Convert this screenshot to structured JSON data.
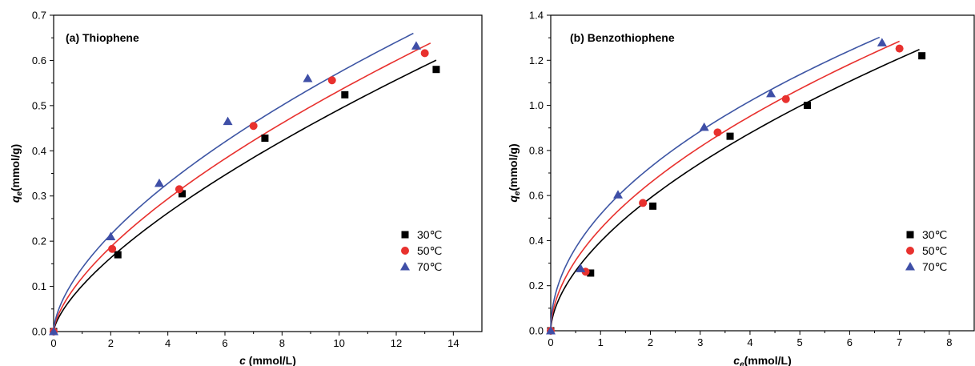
{
  "chart_data": [
    {
      "type": "scatter",
      "title": "(a) Thiophene",
      "xlabel": {
        "main": "c",
        "sub": "",
        "unit": " (mmol/L)"
      },
      "ylabel": {
        "main": "q",
        "sub": "e",
        "unit": "(mmol/g)"
      },
      "xlim": [
        0,
        15
      ],
      "ylim": [
        0,
        0.7
      ],
      "xticks": [
        "0",
        "2",
        "4",
        "6",
        "8",
        "10",
        "12",
        "14"
      ],
      "yticks": [
        "0.0",
        "0.1",
        "0.2",
        "0.3",
        "0.4",
        "0.5",
        "0.6",
        "0.7"
      ],
      "grid": false,
      "legend_position": "middle-right",
      "series": [
        {
          "name": "30℃",
          "marker": "square",
          "color": "#000000",
          "line_color": "#000000",
          "x": [
            0,
            2.25,
            4.5,
            7.4,
            10.2,
            13.4
          ],
          "y": [
            0,
            0.17,
            0.305,
            0.428,
            0.524,
            0.58
          ],
          "fit": {
            "k": 0.1015,
            "n": 0.685,
            "xmax": 13.4
          }
        },
        {
          "name": "50℃",
          "marker": "circle",
          "color": "#e8312e",
          "line_color": "#e8312e",
          "x": [
            0,
            2.05,
            4.4,
            7.0,
            9.75,
            13.0
          ],
          "y": [
            0,
            0.183,
            0.315,
            0.455,
            0.556,
            0.616
          ],
          "fit": {
            "k": 0.1193,
            "n": 0.65,
            "xmax": 13.2
          }
        },
        {
          "name": "70℃",
          "marker": "triangle",
          "color": "#3f4fa7",
          "line_color": "#3d55a4",
          "x": [
            0,
            2.0,
            3.7,
            6.1,
            8.9,
            12.7
          ],
          "y": [
            0,
            0.21,
            0.328,
            0.465,
            0.56,
            0.632
          ],
          "fit": {
            "k": 0.1407,
            "n": 0.61,
            "xmax": 12.6
          }
        }
      ]
    },
    {
      "type": "scatter",
      "title": "(b) Benzothiophene",
      "xlabel": {
        "main": "c",
        "sub": "e",
        "unit": "(mmol/L)"
      },
      "ylabel": {
        "main": "q",
        "sub": "e",
        "unit": "(mmol/g)"
      },
      "xlim": [
        0,
        8.5
      ],
      "ylim": [
        0,
        1.4
      ],
      "xticks": [
        "0",
        "1",
        "2",
        "3",
        "4",
        "5",
        "6",
        "7",
        "8"
      ],
      "yticks": [
        "0.0",
        "0.2",
        "0.4",
        "0.6",
        "0.8",
        "1.0",
        "1.2",
        "1.4"
      ],
      "grid": false,
      "legend_position": "bottom-right",
      "series": [
        {
          "name": "30℃",
          "marker": "square",
          "color": "#000000",
          "line_color": "#000000",
          "x": [
            0,
            0.8,
            2.05,
            3.6,
            5.15,
            7.45
          ],
          "y": [
            0,
            0.256,
            0.553,
            0.863,
            1.0,
            1.22
          ],
          "fit": {
            "k": 0.3956,
            "n": 0.574,
            "xmax": 7.4
          }
        },
        {
          "name": "50℃",
          "marker": "circle",
          "color": "#e8312e",
          "line_color": "#e8312e",
          "x": [
            0,
            0.7,
            1.85,
            3.35,
            4.72,
            7.0
          ],
          "y": [
            0,
            0.262,
            0.567,
            0.88,
            1.028,
            1.252
          ],
          "fit": {
            "k": 0.4526,
            "n": 0.536,
            "xmax": 7.0
          }
        },
        {
          "name": "70℃",
          "marker": "triangle",
          "color": "#3f4fa7",
          "line_color": "#3d55a4",
          "x": [
            0,
            0.6,
            1.35,
            3.08,
            4.42,
            6.65
          ],
          "y": [
            0,
            0.276,
            0.603,
            0.903,
            1.052,
            1.278
          ],
          "fit": {
            "k": 0.5165,
            "n": 0.49,
            "xmax": 6.6
          }
        }
      ]
    }
  ]
}
